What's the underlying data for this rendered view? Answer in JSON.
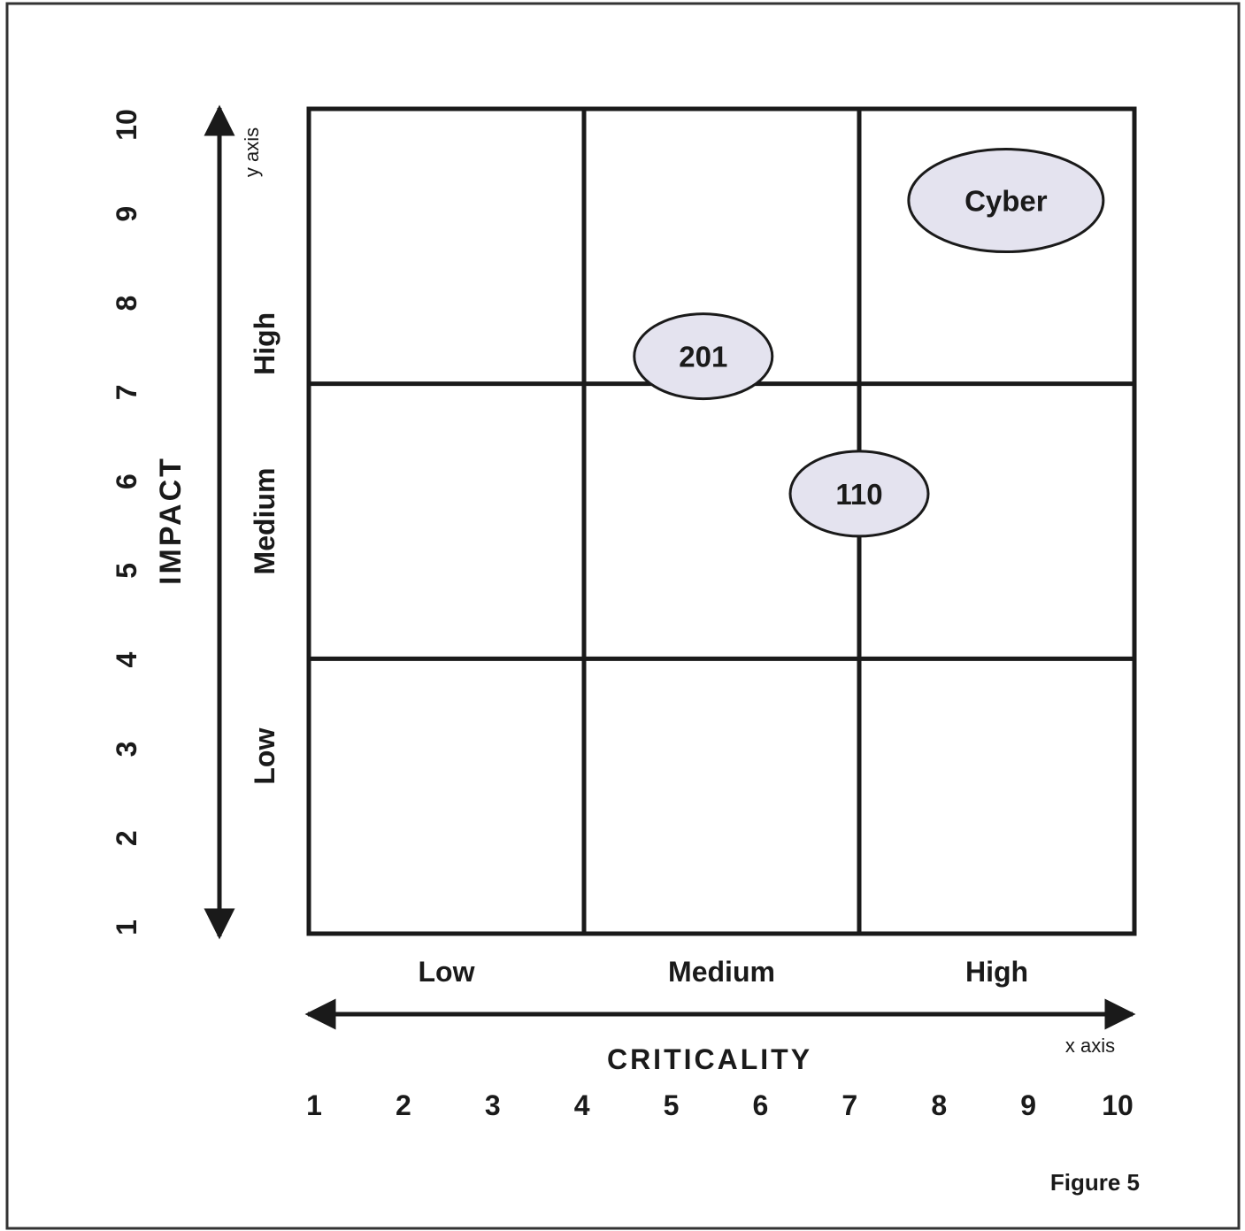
{
  "figure": {
    "caption": "Figure 5"
  },
  "chart_data": {
    "type": "scatter",
    "xlabel": "CRITICALITY",
    "ylabel": "IMPACT",
    "x_axis_note": "x axis",
    "y_axis_note": "y axis",
    "xlim": [
      1,
      10
    ],
    "ylim": [
      1,
      10
    ],
    "x_ticks": [
      "1",
      "2",
      "3",
      "4",
      "5",
      "6",
      "7",
      "8",
      "9",
      "10"
    ],
    "y_ticks": [
      "1",
      "2",
      "3",
      "4",
      "5",
      "6",
      "7",
      "8",
      "9",
      "10"
    ],
    "x_bands": [
      {
        "label": "Low",
        "from": 1,
        "to": 4
      },
      {
        "label": "Medium",
        "from": 4,
        "to": 7
      },
      {
        "label": "High",
        "from": 7,
        "to": 10
      }
    ],
    "y_bands": [
      {
        "label": "Low",
        "from": 1,
        "to": 4
      },
      {
        "label": "Medium",
        "from": 4,
        "to": 7
      },
      {
        "label": "High",
        "from": 7,
        "to": 10
      }
    ],
    "points": [
      {
        "label": "Cyber",
        "x": 8.6,
        "y": 9.0
      },
      {
        "label": "201",
        "x": 5.3,
        "y": 7.3
      },
      {
        "label": "110",
        "x": 7.0,
        "y": 5.8
      }
    ],
    "colors": {
      "bubble_fill": "#e4e3ef",
      "line": "#1a1a1a"
    }
  }
}
